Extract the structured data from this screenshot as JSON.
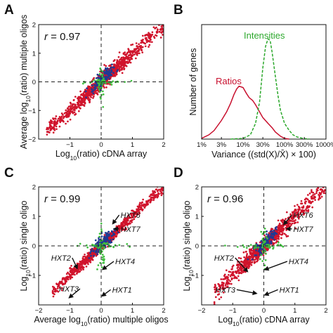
{
  "chart_data": [
    {
      "panel": "A",
      "type": "scatter",
      "xlabel": "Log10(ratio) cDNA array",
      "ylabel": "Average log10(ratio) multiple oligos",
      "xlim": [
        -2,
        2
      ],
      "ylim": [
        -2,
        2
      ],
      "xticks": [
        -1,
        0,
        1,
        2
      ],
      "yticks": [
        -2,
        -1,
        0,
        1,
        2
      ],
      "annotation": {
        "prefix": "r",
        "text": " = 0.97"
      },
      "reference_lines": {
        "x": 0,
        "y": 0,
        "style": "dashed"
      },
      "point_colors": {
        "main": "#d0142c",
        "secondary": "#1f3a93",
        "tertiary": "#3fbf3f"
      },
      "cloud": {
        "slope": 1.0,
        "spread": 0.13,
        "x_range": [
          -1.75,
          2.0
        ],
        "n": 1100
      },
      "gene_labels": []
    },
    {
      "panel": "B",
      "type": "line",
      "xlabel": "Variance ((std(X)/X̄) × 100)",
      "ylabel": "Number of genes",
      "xscale": "log",
      "xlim": [
        1,
        1000
      ],
      "xtick_labels": [
        "1%",
        "3%",
        "10%",
        "30%",
        "100%",
        "300%",
        "1000%"
      ],
      "xticks": [
        1,
        3,
        10,
        30,
        100,
        300,
        1000
      ],
      "ylim": [
        0,
        800
      ],
      "series": [
        {
          "name": "Ratios",
          "color": "#c8102e",
          "dash": "solid",
          "x": [
            1,
            1.5,
            2,
            3,
            4,
            5,
            6,
            7,
            8,
            10,
            12,
            14,
            17,
            20,
            25,
            30,
            40,
            50,
            60,
            80,
            100,
            130
          ],
          "y": [
            5,
            30,
            60,
            130,
            190,
            250,
            310,
            350,
            370,
            360,
            320,
            290,
            270,
            240,
            190,
            150,
            110,
            80,
            50,
            20,
            5,
            0
          ]
        },
        {
          "name": "Intensities",
          "color": "#2ca82c",
          "dash": "dashed",
          "x": [
            5,
            10,
            15,
            20,
            25,
            30,
            35,
            40,
            45,
            50,
            60,
            70,
            80,
            100,
            130,
            160,
            200,
            250,
            300,
            400
          ],
          "y": [
            0,
            5,
            30,
            110,
            260,
            500,
            650,
            700,
            690,
            610,
            440,
            300,
            200,
            110,
            60,
            30,
            15,
            8,
            4,
            0
          ]
        }
      ]
    },
    {
      "panel": "C",
      "type": "scatter",
      "xlabel": "Average log10(ratio) multiple oligos",
      "ylabel": "Log10(ratio) single oligo",
      "xlim": [
        -2,
        2
      ],
      "ylim": [
        -2,
        2
      ],
      "xticks": [
        -2,
        -1,
        0,
        1,
        2
      ],
      "yticks": [
        -1,
        0,
        1,
        2
      ],
      "annotation": {
        "prefix": "r",
        "text": " = 0.99"
      },
      "reference_lines": {
        "x": 0,
        "y": 0,
        "style": "dashed"
      },
      "point_colors": {
        "main": "#d0142c",
        "secondary": "#1f3a93",
        "tertiary": "#3fbf3f"
      },
      "cloud": {
        "slope": 1.0,
        "spread": 0.09,
        "x_range": [
          -1.55,
          2.0
        ],
        "n": 1000
      },
      "gene_labels": [
        {
          "name": "HXT6",
          "label_at": [
            0.62,
            0.95
          ],
          "arrow_to": [
            0.35,
            0.72
          ]
        },
        {
          "name": "HXT7",
          "label_at": [
            0.62,
            0.48
          ],
          "arrow_to": [
            0.38,
            0.58
          ]
        },
        {
          "name": "HXT2",
          "label_at": [
            -1.6,
            -0.5
          ],
          "arrow_to": [
            -0.75,
            -0.8
          ]
        },
        {
          "name": "HXT4",
          "label_at": [
            0.45,
            -0.62
          ],
          "arrow_to": [
            0.02,
            -0.82
          ]
        },
        {
          "name": "HXT1",
          "label_at": [
            0.35,
            -1.58
          ],
          "arrow_to": [
            0.0,
            -1.72
          ]
        },
        {
          "name": "HXT3",
          "label_at": [
            -1.35,
            -1.55
          ],
          "arrow_to": [
            -1.05,
            -1.78
          ]
        }
      ]
    },
    {
      "panel": "D",
      "type": "scatter",
      "xlabel": "Log10(ratio) cDNA array",
      "ylabel": "Log10(ratio) single oligo",
      "xlim": [
        -2,
        2
      ],
      "ylim": [
        -2,
        2
      ],
      "xticks": [
        -2,
        -1,
        0,
        1,
        2
      ],
      "yticks": [
        -1,
        0,
        1,
        2
      ],
      "annotation": {
        "prefix": "r",
        "text": " = 0.96"
      },
      "reference_lines": {
        "x": 0,
        "y": 0,
        "style": "dashed"
      },
      "point_colors": {
        "main": "#d0142c",
        "secondary": "#1f3a93",
        "tertiary": "#3fbf3f"
      },
      "cloud": {
        "slope": 1.0,
        "spread": 0.14,
        "x_range": [
          -1.6,
          2.0
        ],
        "n": 1000
      },
      "gene_labels": [
        {
          "name": "HXT6",
          "label_at": [
            0.95,
            0.95
          ],
          "arrow_to": [
            0.62,
            0.7
          ]
        },
        {
          "name": "HXT7",
          "label_at": [
            0.95,
            0.48
          ],
          "arrow_to": [
            0.7,
            0.58
          ]
        },
        {
          "name": "HXT2",
          "label_at": [
            -1.6,
            -0.5
          ],
          "arrow_to": [
            -0.5,
            -0.9
          ]
        },
        {
          "name": "HXT4",
          "label_at": [
            0.8,
            -0.62
          ],
          "arrow_to": [
            0.0,
            -0.82
          ]
        },
        {
          "name": "HXT1",
          "label_at": [
            0.5,
            -1.58
          ],
          "arrow_to": [
            0.0,
            -1.68
          ]
        },
        {
          "name": "HXT3",
          "label_at": [
            -1.55,
            -1.58
          ],
          "arrow_to": [
            -0.2,
            -1.62
          ]
        }
      ]
    }
  ]
}
